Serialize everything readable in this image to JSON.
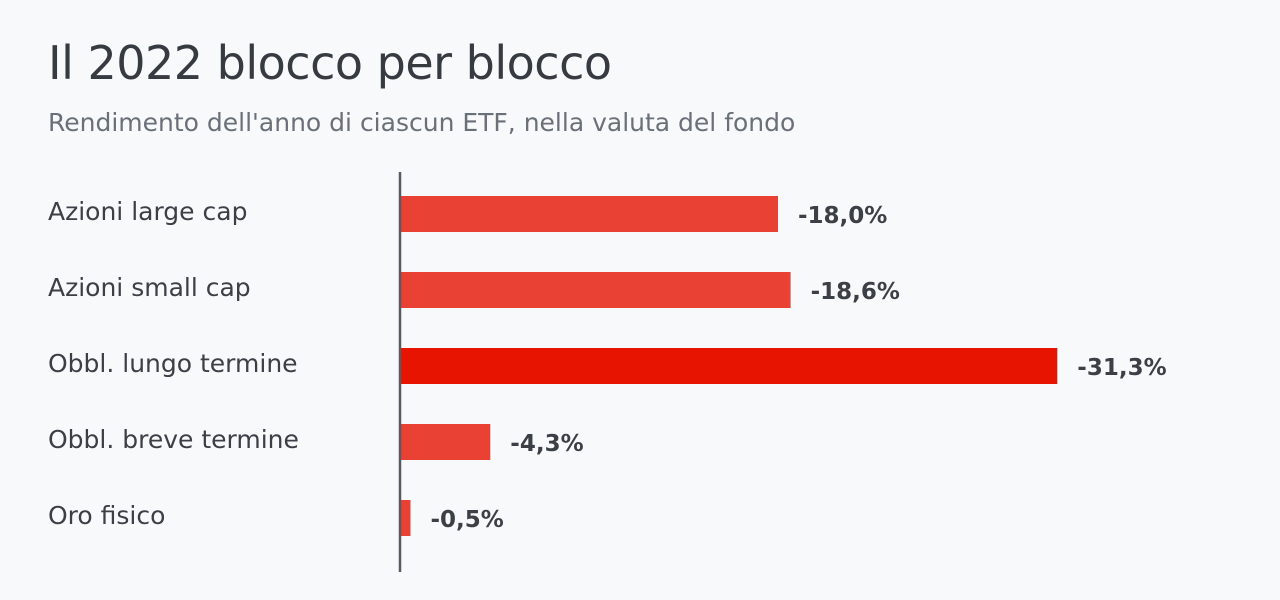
{
  "header": {
    "title": "Il 2022 blocco per blocco",
    "subtitle": "Rendimento dell'anno di ciascun ETF, nella valuta del fondo"
  },
  "colors": {
    "bar": "#ea4135",
    "bar_highlight": "#e61400",
    "axis": "#555b63",
    "background": "#f8f9fa"
  },
  "chart_data": {
    "type": "bar",
    "orientation": "horizontal",
    "categories": [
      "Azioni large cap",
      "Azioni small cap",
      "Obbl. lungo termine",
      "Obbl. breve termine",
      "Oro fisico"
    ],
    "values": [
      -18.0,
      -18.6,
      -31.3,
      -4.3,
      -0.5
    ],
    "value_labels": [
      "-18,0%",
      "-18,6%",
      "-31,3%",
      "-4,3%",
      "-0,5%"
    ],
    "highlight_index": 2,
    "title": "Il 2022 blocco per blocco",
    "subtitle": "Rendimento dell'anno di ciascun ETF, nella valuta del fondo",
    "xlabel": "",
    "ylabel": "",
    "grid": false,
    "legend": "none"
  }
}
